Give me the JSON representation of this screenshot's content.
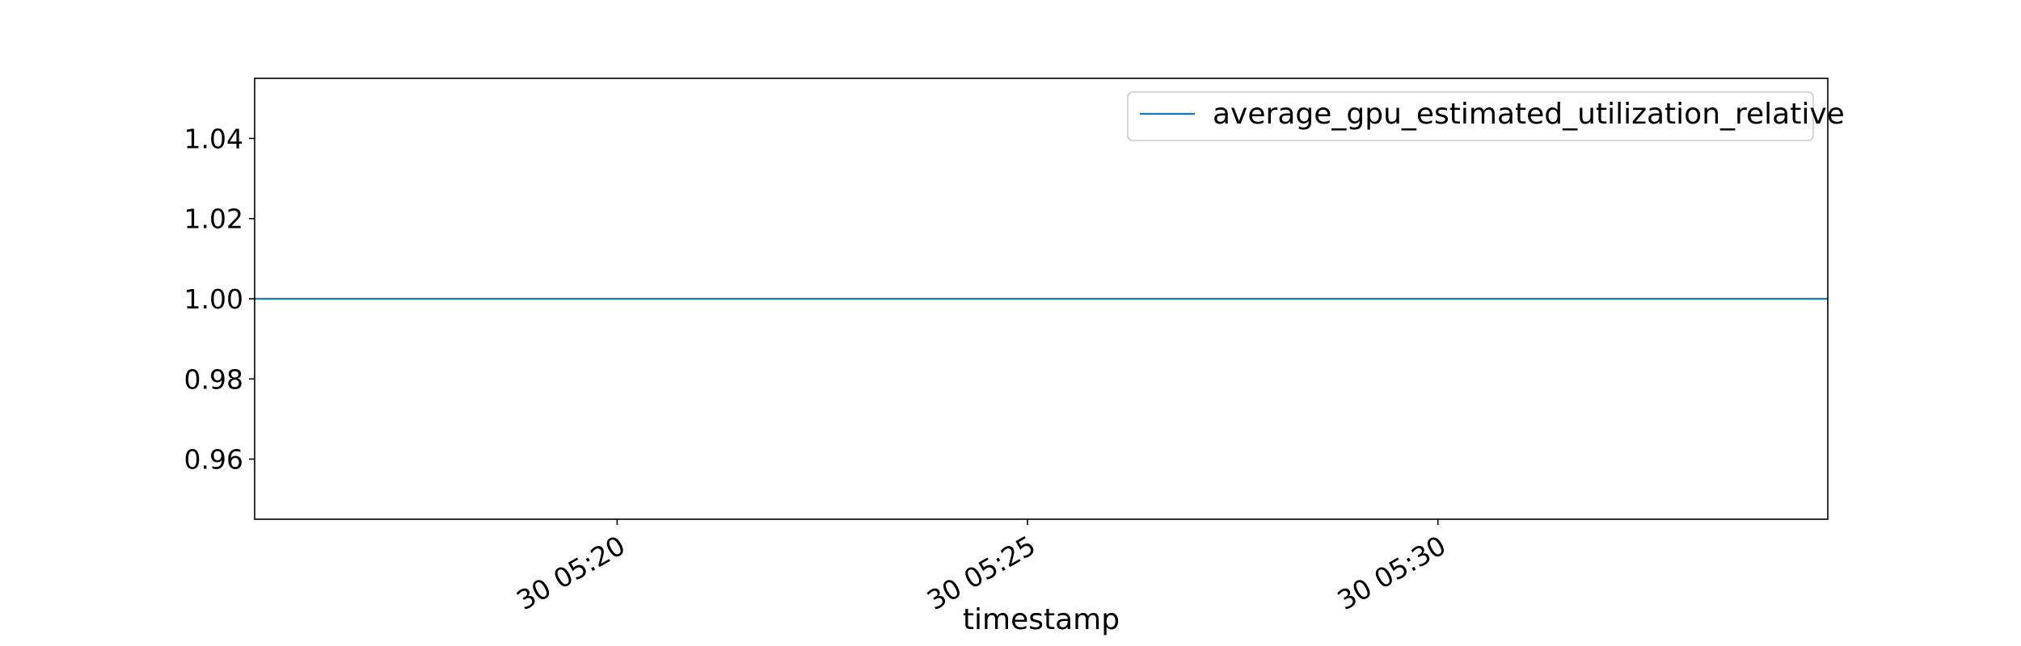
{
  "chart_data": {
    "type": "line",
    "title": "",
    "xlabel": "timestamp",
    "ylabel": "",
    "x": [
      "30 05:15:35",
      "30 05:34:45"
    ],
    "xlim": [
      "30 05:15:35",
      "30 05:34:45"
    ],
    "xticks": [
      "30 05:20",
      "30 05:25",
      "30 05:30"
    ],
    "ylim": [
      0.945,
      1.055
    ],
    "yticks": [
      "0.96",
      "0.98",
      "1.00",
      "1.02",
      "1.04"
    ],
    "series": [
      {
        "name": "average_gpu_estimated_utilization_relative",
        "color": "#1f77b4",
        "values": [
          1.0,
          1.0
        ]
      }
    ],
    "grid": false,
    "legend_position": "upper right"
  }
}
